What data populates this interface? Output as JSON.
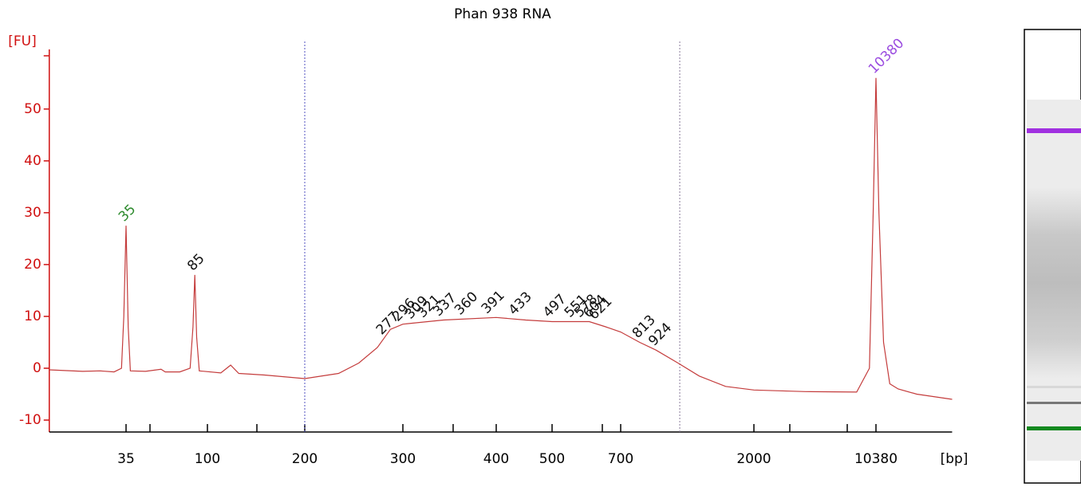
{
  "chart_data": {
    "type": "line",
    "title": "Phan 938 RNA",
    "y_label": "[FU]",
    "x_label": "[bp]",
    "x": [
      13,
      20,
      25,
      30,
      33,
      34,
      35,
      36,
      37,
      45,
      55,
      58,
      70,
      80,
      83,
      85,
      87,
      90,
      110,
      118,
      125,
      150,
      200,
      230,
      250,
      270,
      285,
      300,
      340,
      400,
      450,
      500,
      600,
      650,
      700,
      813,
      924,
      1100,
      1300,
      1600,
      2000,
      4000,
      8000,
      9500,
      10000,
      10380,
      10800,
      11500,
      12500,
      14000,
      18000,
      29000
    ],
    "series": [
      {
        "color": "#c43c3c",
        "values": [
          -0.3,
          -0.6,
          -0.5,
          -0.7,
          0,
          10,
          27.5,
          8,
          -0.5,
          -0.6,
          -0.2,
          -0.7,
          -0.7,
          0,
          8,
          18,
          6,
          -0.5,
          -0.9,
          0.6,
          -1,
          -1.3,
          -2,
          -1,
          1,
          4,
          7.5,
          8.5,
          9.3,
          9.8,
          9.3,
          9,
          9,
          8,
          7,
          5,
          3.5,
          1,
          -1.5,
          -3.5,
          -4.2,
          -4.5,
          -4.6,
          0,
          30,
          56,
          30,
          5,
          -3,
          -4,
          -5,
          -6
        ]
      }
    ],
    "peak_labels": [
      {
        "bp": 35,
        "color": "#2e8b2e"
      },
      {
        "bp": 85,
        "color": "#111111"
      },
      {
        "bp": 277,
        "color": "#111111"
      },
      {
        "bp": 296,
        "color": "#111111"
      },
      {
        "bp": 309,
        "color": "#111111"
      },
      {
        "bp": 321,
        "color": "#111111"
      },
      {
        "bp": 337,
        "color": "#111111"
      },
      {
        "bp": 360,
        "color": "#111111"
      },
      {
        "bp": 391,
        "color": "#111111"
      },
      {
        "bp": 433,
        "color": "#111111"
      },
      {
        "bp": 497,
        "color": "#111111"
      },
      {
        "bp": 551,
        "color": "#111111"
      },
      {
        "bp": 578,
        "color": "#111111"
      },
      {
        "bp": 604,
        "color": "#111111"
      },
      {
        "bp": 621,
        "color": "#111111"
      },
      {
        "bp": 813,
        "color": "#111111"
      },
      {
        "bp": 924,
        "color": "#111111"
      },
      {
        "bp": 10380,
        "color": "#9b4de0"
      }
    ],
    "region": [
      200,
      1115
    ],
    "xlim": [
      13,
      29000
    ],
    "xticks": [
      35,
      100,
      200,
      300,
      400,
      500,
      700,
      2000,
      10380
    ],
    "ylim": [
      -12.3,
      61.5
    ],
    "yticks": [
      -10,
      0,
      10,
      20,
      30,
      40,
      50
    ]
  }
}
